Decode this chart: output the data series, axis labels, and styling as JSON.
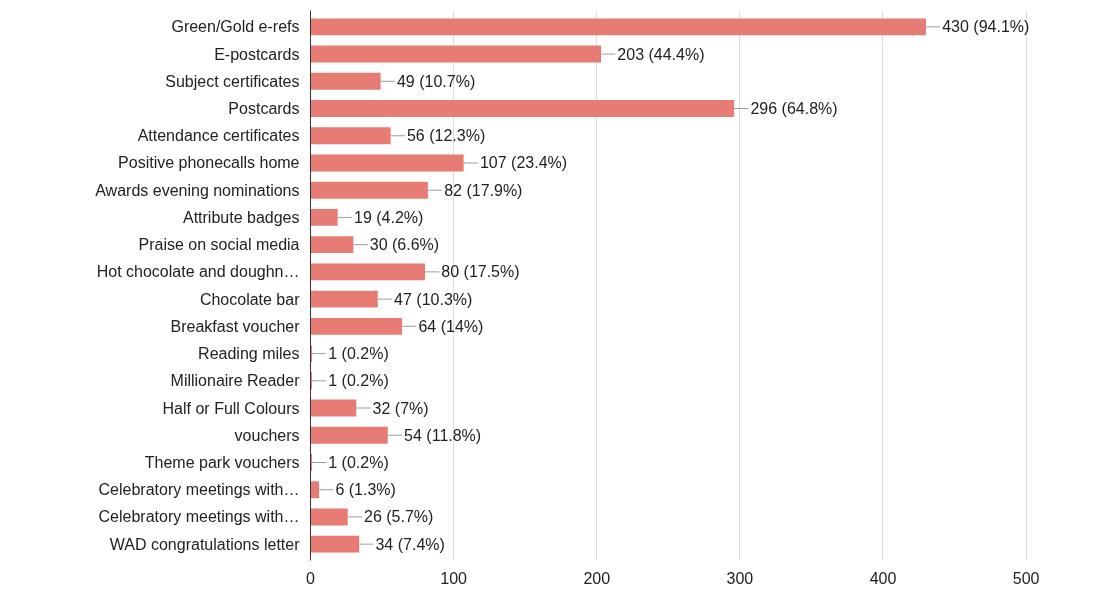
{
  "chart_data": {
    "type": "bar",
    "orientation": "horizontal",
    "categories": [
      "Green/Gold e-refs",
      "E-postcards",
      "Subject certificates",
      "Postcards",
      "Attendance certificates",
      "Positive phonecalls home",
      "Awards evening nominations",
      "Attribute badges",
      "Praise on social media",
      "Hot chocolate and doughn…",
      "Chocolate bar",
      "Breakfast voucher",
      "Reading miles",
      "Millionaire Reader",
      "Half or Full Colours",
      "vouchers",
      "Theme park vouchers",
      "Celebratory meetings with…",
      "Celebratory meetings with…",
      "WAD congratulations letter"
    ],
    "values": [
      430,
      203,
      49,
      296,
      56,
      107,
      82,
      19,
      30,
      80,
      47,
      64,
      1,
      1,
      32,
      54,
      1,
      6,
      26,
      34
    ],
    "value_labels": [
      "430 (94.1%)",
      "203 (44.4%)",
      "49 (10.7%)",
      "296 (64.8%)",
      "56 (12.3%)",
      "107 (23.4%)",
      "82 (17.9%)",
      "19 (4.2%)",
      "30 (6.6%)",
      "80 (17.5%)",
      "47 (10.3%)",
      "64 (14%)",
      "1 (0.2%)",
      "1 (0.2%)",
      "32 (7%)",
      "54 (11.8%)",
      "1 (0.2%)",
      "6 (1.3%)",
      "26 (5.7%)",
      "34 (7.4%)"
    ],
    "color": "#e67c73",
    "xlim": [
      0,
      500
    ],
    "xticks": [
      0,
      100,
      200,
      300,
      400,
      500
    ],
    "grid": "x"
  }
}
